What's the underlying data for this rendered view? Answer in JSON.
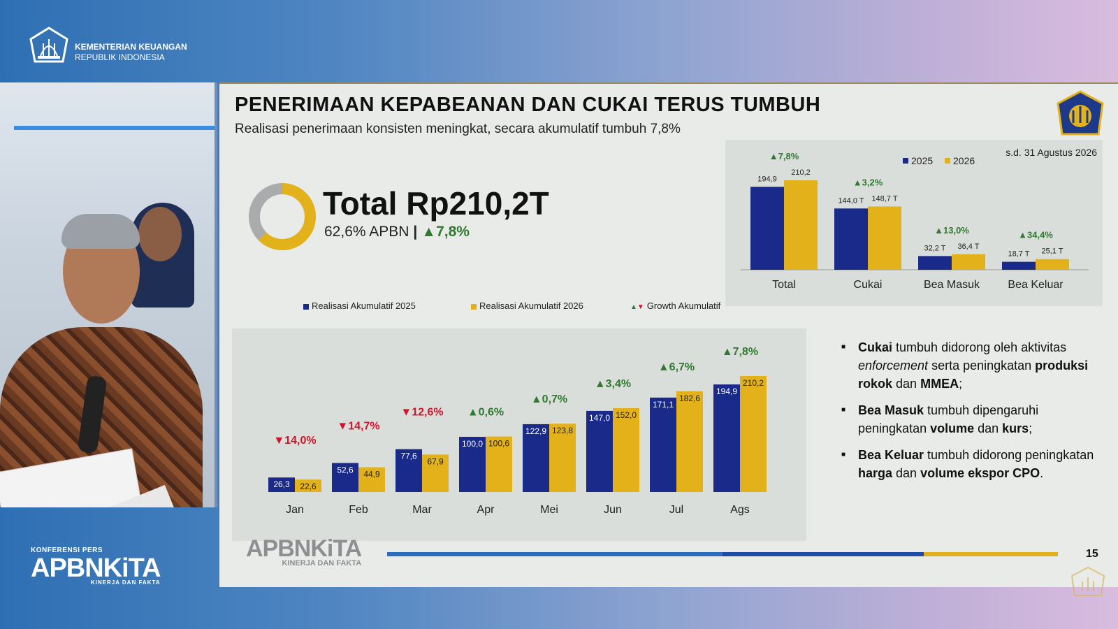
{
  "header": {
    "ministry_line1": "KEMENTERIAN KEUANGAN",
    "ministry_line2": "REPUBLIK INDONESIA"
  },
  "brand": {
    "konferensi": "KONFERENSI PERS",
    "name": "APBNKiTA",
    "tagline": "KINERJA DAN FAKTA"
  },
  "slide": {
    "title": "PENERIMAAN KEPABEANAN DAN CUKAI TERUS TUMBUH",
    "subtitle": "Realisasi penerimaan konsisten meningkat, secara akumulatif tumbuh 7,8%",
    "total": "Total Rp210,2T",
    "apbn": "62,6% APBN",
    "separator": "|",
    "growth": "▲7,8%",
    "donut_fraction": 0.626,
    "page_number": "15",
    "footer_brand": "APBNKiTA",
    "footer_tagline": "KINERJA DAN FAKTA"
  },
  "bullets": [
    {
      "b1": "Cukai",
      "t1": " tumbuh didorong oleh aktivitas ",
      "i1": "enforcement",
      "t2": " serta peningkatan ",
      "b2": "produksi rokok",
      "t3": " dan ",
      "b3": "MMEA",
      "t4": ";"
    },
    {
      "b1": "Bea Masuk",
      "t1": " tumbuh dipengaruhi peningkatan ",
      "b2": "volume",
      "t2": " dan ",
      "b3": "kurs",
      "t3": ";"
    },
    {
      "b1": "Bea Keluar",
      "t1": " tumbuh didorong peningkatan ",
      "b2": "harga",
      "t2": " dan ",
      "b3": "volume ekspor CPO",
      "t3": "."
    }
  ],
  "colors": {
    "series_2025": "#1a2a8a",
    "series_2026": "#e3b21a",
    "growth_up": "#2f7a2f",
    "growth_down": "#d0142a",
    "donut_rest": "#a9abad"
  },
  "chart_data": [
    {
      "type": "bar",
      "title": "",
      "note": "s.d. 31 Agustus 2026",
      "categories": [
        "Total",
        "Cukai",
        "Bea Masuk",
        "Bea Keluar"
      ],
      "series": [
        {
          "name": "2025",
          "values": [
            194.9,
            144.0,
            32.2,
            18.7
          ],
          "labels": [
            "194,9",
            "144,0 T",
            "32,2 T",
            "18,7 T"
          ]
        },
        {
          "name": "2026",
          "values": [
            210.2,
            148.7,
            36.4,
            25.1
          ],
          "labels": [
            "210,2",
            "148,7 T",
            "36,4 T",
            "25,1 T"
          ]
        }
      ],
      "growth": [
        "▲7,8%",
        "▲3,2%",
        "▲13,0%",
        "▲34,4%"
      ],
      "legend_position": "top-right"
    },
    {
      "type": "bar",
      "title": "",
      "categories": [
        "Jan",
        "Feb",
        "Mar",
        "Apr",
        "Mei",
        "Jun",
        "Jul",
        "Ags"
      ],
      "legend": [
        "Realisasi Akumulatif 2025",
        "Realisasi Akumulatif 2026",
        "Growth Akumulatif"
      ],
      "series": [
        {
          "name": "Realisasi Akumulatif 2025",
          "values": [
            26.3,
            52.6,
            77.6,
            100.0,
            122.9,
            147.0,
            171.1,
            194.9
          ],
          "labels": [
            "26,3",
            "52,6",
            "77,6",
            "100,0",
            "122,9",
            "147,0",
            "171,1",
            "194,9"
          ]
        },
        {
          "name": "Realisasi Akumulatif 2026",
          "values": [
            22.6,
            44.9,
            67.9,
            100.6,
            123.8,
            152.0,
            182.6,
            210.2
          ],
          "labels": [
            "22,6",
            "44,9",
            "67,9",
            "100,6",
            "123,8",
            "152,0",
            "182,6",
            "210,2"
          ]
        }
      ],
      "growth": [
        "▼14,0%",
        "▼14,7%",
        "▼12,6%",
        "▲0,6%",
        "▲0,7%",
        "▲3,4%",
        "▲6,7%",
        "▲7,8%"
      ],
      "growth_up": [
        false,
        false,
        false,
        true,
        true,
        true,
        true,
        true
      ],
      "legend_position": "top"
    }
  ]
}
